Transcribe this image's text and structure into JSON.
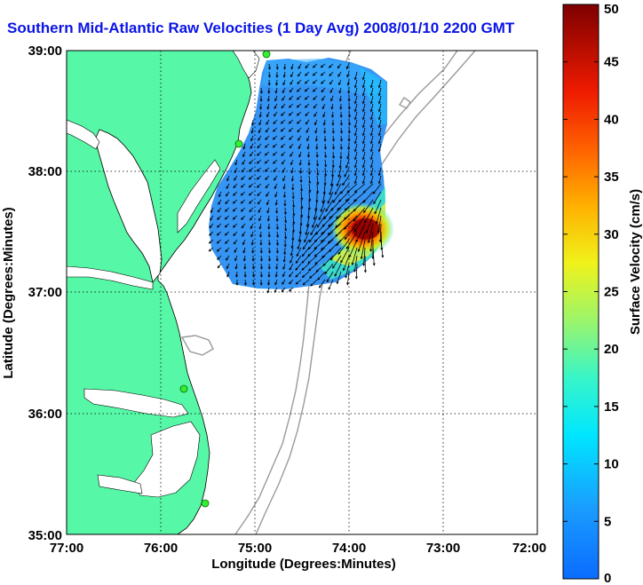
{
  "title": "Southern Mid-Atlantic Raw Velocities (1 Day Avg) 2008/01/10 2200 GMT",
  "map": {
    "x_axis": {
      "label": "Longitude (Degrees:Minutes)",
      "range": [
        -77,
        -72
      ],
      "ticks": [
        "77:00",
        "76:00",
        "75:00",
        "74:00",
        "73:00",
        "72:00"
      ]
    },
    "y_axis": {
      "label": "Latitude (Degrees:Minutes)",
      "range": [
        35,
        39
      ],
      "ticks": [
        "35:00",
        "36:00",
        "37:00",
        "38:00",
        "39:00"
      ]
    },
    "grid": "dotted",
    "colors": {
      "land": "#56f7a6",
      "coastline": "#000000",
      "bathymetry": "#9a9a9a",
      "vectors": "#000000",
      "stations": "#33ee33"
    }
  },
  "colorbar": {
    "label": "Surface Velocity (cm/s)",
    "range": [
      0,
      50
    ],
    "ticks": [
      "0",
      "5",
      "10",
      "15",
      "20",
      "25",
      "30",
      "35",
      "40",
      "45",
      "50"
    ],
    "colormap": "jet"
  }
}
